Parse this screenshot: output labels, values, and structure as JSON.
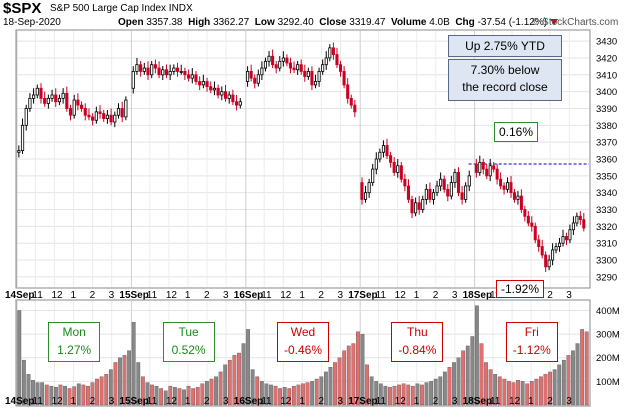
{
  "header": {
    "symbol": "$SPX",
    "index_name": "S&P 500 Large Cap Index",
    "index_code": "INDX",
    "date": "18-Sep-2020",
    "open_label": "Open",
    "open": "3357.38",
    "high_label": "High",
    "high": "3362.27",
    "low_label": "Low",
    "low": "3292.40",
    "close_label": "Close",
    "close": "3319.47",
    "volume_label": "Volume",
    "volume": "4.0B",
    "chg_label": "Chg",
    "chg": "-37.54 (-1.12%)",
    "watermark": "© StockCharts.com"
  },
  "annotations": {
    "ytd": "Up 2.75% YTD",
    "below_line1": "7.30% below",
    "below_line2": "the record close",
    "pct_up": "0.16%",
    "pct_down": "-1.92%"
  },
  "day_changes": [
    {
      "day": "Mon",
      "change": "1.27%",
      "color": "#1a8a1a",
      "border": "#2e8b2e"
    },
    {
      "day": "Tue",
      "change": "0.52%",
      "color": "#1a8a1a",
      "border": "#2e8b2e"
    },
    {
      "day": "Wed",
      "change": "-0.46%",
      "color": "#cc0000",
      "border": "#cc0000"
    },
    {
      "day": "Thu",
      "change": "-0.84%",
      "color": "#cc0000",
      "border": "#cc0000"
    },
    {
      "day": "Fri",
      "change": "-1.12%",
      "color": "#cc0000",
      "border": "#cc0000"
    }
  ],
  "chart_data": {
    "type": "candlestick",
    "interval": "5-minute",
    "ylim": [
      3284,
      3436
    ],
    "y_ticks": [
      3290,
      3300,
      3310,
      3320,
      3330,
      3340,
      3350,
      3360,
      3370,
      3380,
      3390,
      3400,
      3410,
      3420,
      3430
    ],
    "reference_level": 3357,
    "x_tick_labels": [
      "14Sep",
      "11",
      "12",
      "1",
      "2",
      "3",
      "15Sep",
      "11",
      "12",
      "1",
      "2",
      "3",
      "16Sep",
      "11",
      "12",
      "1",
      "2",
      "3",
      "17Sep",
      "11",
      "12",
      "1",
      "2",
      "3",
      "18Sep",
      "11",
      "12",
      "1",
      "2",
      "3"
    ],
    "days": [
      "14Sep",
      "15Sep",
      "16Sep",
      "17Sep",
      "18Sep"
    ],
    "colors": {
      "up": "#000000",
      "down": "#cc0022",
      "up_fill": "#ffffff",
      "volume_up": "#888888",
      "volume_down": "#e07070",
      "reference_line": "#0000cc"
    },
    "close_path": [
      [
        3364,
        3365,
        3380,
        3390,
        3396,
        3398,
        3402,
        3396,
        3393,
        3396,
        3398,
        3394,
        3396,
        3399,
        3390,
        3386,
        3395,
        3392,
        3390,
        3386,
        3385,
        3383,
        3388,
        3387,
        3384,
        3386,
        3382,
        3386,
        3390,
        3385,
        3395
      ],
      [
        3402,
        3412,
        3416,
        3412,
        3414,
        3410,
        3416,
        3414,
        3410,
        3413,
        3410,
        3412,
        3414,
        3412,
        3412,
        3410,
        3408,
        3410,
        3406,
        3404,
        3406,
        3403,
        3401,
        3402,
        3398,
        3400,
        3396,
        3398,
        3394,
        3392,
        3394
      ],
      [
        3406,
        3412,
        3408,
        3405,
        3410,
        3414,
        3418,
        3421,
        3416,
        3414,
        3418,
        3420,
        3417,
        3414,
        3413,
        3416,
        3412,
        3409,
        3412,
        3404,
        3406,
        3412,
        3416,
        3420,
        3426,
        3422,
        3416,
        3412,
        3404,
        3396,
        3392,
        3388
      ],
      [
        3346,
        3336,
        3340,
        3346,
        3354,
        3360,
        3364,
        3368,
        3362,
        3358,
        3352,
        3356,
        3348,
        3344,
        3336,
        3328,
        3334,
        3330,
        3336,
        3342,
        3336,
        3340,
        3344,
        3348,
        3342,
        3338,
        3346,
        3352,
        3340,
        3336,
        3344,
        3350
      ],
      [
        3357,
        3352,
        3358,
        3354,
        3350,
        3356,
        3354,
        3348,
        3344,
        3342,
        3346,
        3340,
        3336,
        3338,
        3330,
        3326,
        3322,
        3320,
        3312,
        3308,
        3303,
        3296,
        3300,
        3306,
        3308,
        3310,
        3314,
        3312,
        3318,
        3322,
        3326,
        3324,
        3319
      ]
    ],
    "volume_scale": {
      "labels": [
        "100M",
        "200M",
        "300M",
        "400M"
      ],
      "values": [
        100,
        200,
        300,
        400
      ],
      "max": 440
    },
    "volume_path": [
      [
        400,
        190,
        130,
        105,
        95,
        95,
        85,
        80,
        75,
        85,
        80,
        70,
        78,
        90,
        85,
        80,
        95,
        110,
        120,
        130,
        150,
        180,
        200,
        210,
        230
      ],
      [
        350,
        180,
        120,
        95,
        85,
        80,
        70,
        60,
        80,
        75,
        70,
        65,
        80,
        70,
        75,
        90,
        100,
        110,
        120,
        140,
        170,
        190,
        210,
        220,
        260
      ],
      [
        320,
        150,
        120,
        100,
        90,
        85,
        80,
        70,
        75,
        70,
        80,
        85,
        90,
        95,
        100,
        110,
        120,
        140,
        160,
        180,
        200,
        230,
        250,
        260,
        310
      ],
      [
        300,
        170,
        120,
        100,
        90,
        80,
        75,
        80,
        85,
        90,
        85,
        80,
        90,
        85,
        95,
        100,
        110,
        120,
        140,
        160,
        180,
        200,
        230,
        250,
        290
      ],
      [
        420,
        260,
        180,
        150,
        130,
        120,
        110,
        100,
        95,
        105,
        100,
        90,
        100,
        110,
        120,
        130,
        140,
        150,
        170,
        190,
        210,
        230,
        260,
        320,
        310
      ]
    ]
  }
}
